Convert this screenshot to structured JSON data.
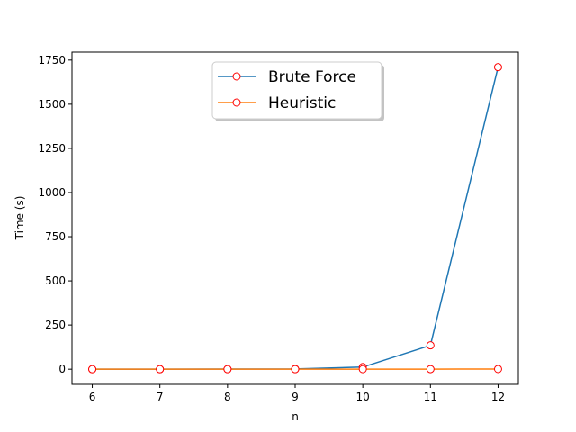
{
  "chart_data": {
    "type": "line",
    "title": "",
    "xlabel": "n",
    "ylabel": "Time (s)",
    "x": [
      6,
      7,
      8,
      9,
      10,
      11,
      12
    ],
    "xlim": [
      5.7,
      12.3
    ],
    "ylim": [
      -85.8,
      1795.0
    ],
    "xticks": [
      6,
      7,
      8,
      9,
      10,
      11,
      12
    ],
    "yticks": [
      0,
      250,
      500,
      750,
      1000,
      1250,
      1500,
      1750
    ],
    "grid": false,
    "legend_position": "top-center",
    "marker": {
      "shape": "circle",
      "face_color": "#ffffff",
      "edge_color": "#ff0000"
    },
    "series": [
      {
        "name": "Brute Force",
        "color": "#1f77b4",
        "values": [
          0.02,
          0.1,
          0.6,
          1.5,
          12,
          135,
          1710
        ]
      },
      {
        "name": "Heuristic",
        "color": "#ff7f0e",
        "values": [
          0.01,
          0.02,
          0.05,
          0.1,
          0.3,
          0.5,
          1.0
        ]
      }
    ]
  }
}
